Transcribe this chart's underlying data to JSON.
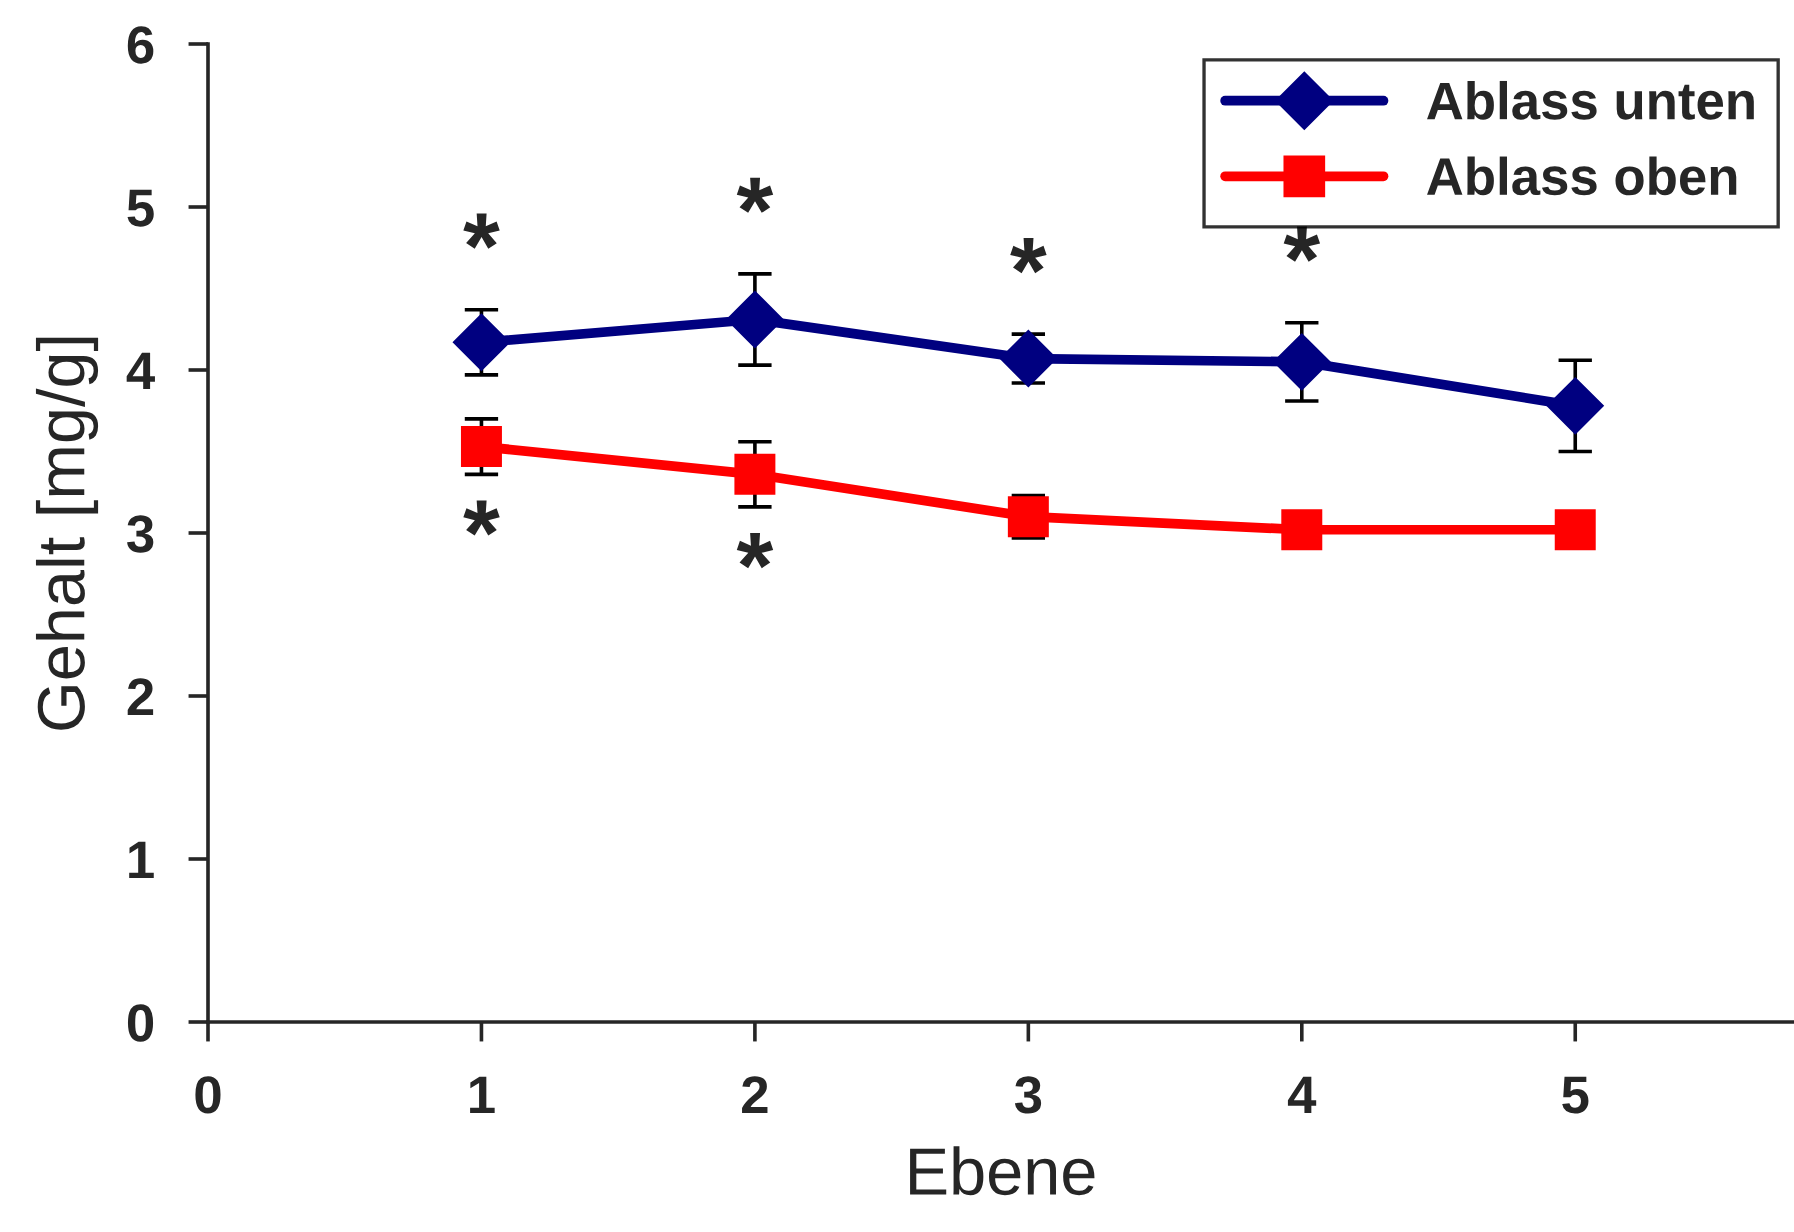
{
  "chart_data": {
    "type": "line",
    "xlabel": "Ebene",
    "ylabel": "Gehalt [mg/g]",
    "x": [
      1,
      2,
      3,
      4,
      5
    ],
    "series": [
      {
        "name": "Ablass unten",
        "color": "#000080",
        "marker": "diamond",
        "values": [
          4.17,
          4.31,
          4.07,
          4.05,
          3.78
        ],
        "errors": [
          0.2,
          0.28,
          0.15,
          0.24,
          0.28
        ]
      },
      {
        "name": "Ablass oben",
        "color": "#ff0000",
        "marker": "square",
        "values": [
          3.53,
          3.36,
          3.1,
          3.02,
          3.02
        ],
        "errors": [
          0.17,
          0.2,
          0.13,
          null,
          null
        ]
      }
    ],
    "xlim": [
      0,
      5.8
    ],
    "xticks": [
      0,
      1,
      2,
      3,
      4,
      5
    ],
    "ylim": [
      0,
      6
    ],
    "yticks": [
      0,
      1,
      2,
      3,
      4,
      5,
      6
    ],
    "annotations": [
      {
        "text": "*",
        "x": 1,
        "y": 4.37
      },
      {
        "text": "*",
        "x": 2,
        "y": 4.59
      },
      {
        "text": "*",
        "x": 3,
        "y": 4.22
      },
      {
        "text": "*",
        "x": 4,
        "y": 4.29
      },
      {
        "text": "*",
        "x": 1,
        "y": 3.36
      },
      {
        "text": "*",
        "x": 2,
        "y": 3.16
      }
    ],
    "grid": false,
    "legend": "top right"
  }
}
